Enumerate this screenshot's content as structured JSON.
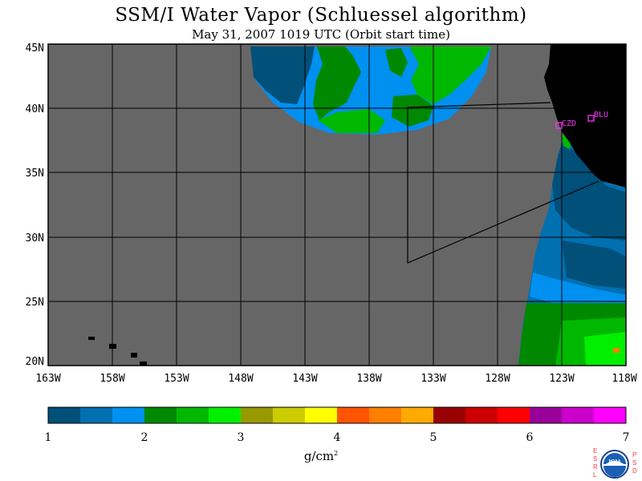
{
  "header": {
    "title": "SSM/I Water Vapor (Schluessel algorithm)",
    "subtitle": "May 31, 2007  1019 UTC  (Orbit start time)"
  },
  "map": {
    "lat_labels": [
      "45N",
      "40N",
      "35N",
      "30N",
      "25N",
      "20N"
    ],
    "lon_labels": [
      "163W",
      "158W",
      "153W",
      "148W",
      "143W",
      "138W",
      "133W",
      "128W",
      "123W",
      "118W"
    ],
    "stations": [
      {
        "id": "CZD",
        "label": "CZD"
      },
      {
        "id": "BLU",
        "label": "BLU"
      }
    ],
    "colors": {
      "no_data": "#666666",
      "land": "#000000",
      "station": "#ff33ff"
    }
  },
  "colorbar": {
    "tick_labels": [
      "1",
      "2",
      "3",
      "4",
      "5",
      "6",
      "7"
    ],
    "colors": [
      "#00507a",
      "#0070b0",
      "#0090f0",
      "#008800",
      "#00b800",
      "#00f000",
      "#999900",
      "#cccc00",
      "#ffff00",
      "#ff5500",
      "#ff7f00",
      "#ffaa00",
      "#990000",
      "#cc0000",
      "#ff0000",
      "#990099",
      "#cc00cc",
      "#ff00ff"
    ],
    "units_base": "g/cm",
    "units_exp": "2"
  },
  "logo": {
    "left_letters": "ESRL",
    "right_letters": "PSD",
    "text": "NOAA"
  }
}
